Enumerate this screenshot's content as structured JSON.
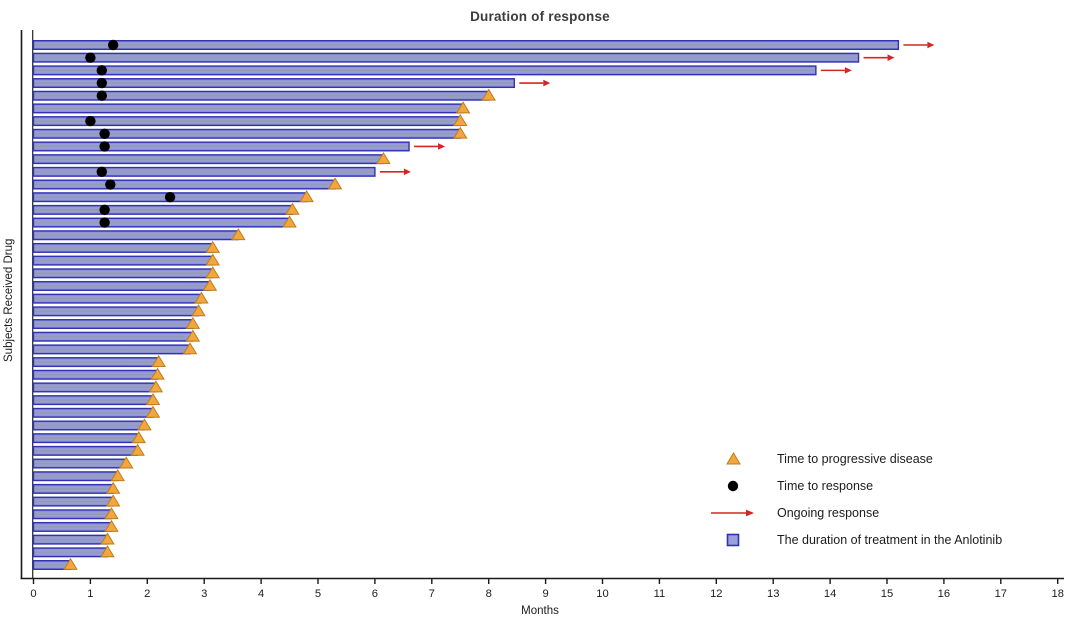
{
  "title": "Duration of response",
  "y_axis_label": "Subjects Received Drug",
  "x_axis_label": "Months",
  "legend": {
    "items": [
      {
        "label": "Time to progressive disease",
        "marker": "triangle"
      },
      {
        "label": "Time to response",
        "marker": "circle"
      },
      {
        "label": "Ongoing response",
        "marker": "arrow"
      },
      {
        "label": "The duration of treatment in the Anlotinib",
        "marker": "square"
      }
    ]
  },
  "colors": {
    "bar_fill_light": "#9aa0d8",
    "bar_fill_core": "#939aae",
    "bar_edge": "#7d84cf",
    "bar_border": "#3232b2",
    "triangle": "#f2a73b",
    "triangle_border": "#bf7d1c",
    "dot": "#000000",
    "arrow": "#d42724",
    "axis": "#1a1a1a",
    "text": "#1c1c1c"
  },
  "chart_data": {
    "type": "bar",
    "orientation": "horizontal",
    "title": "Duration of response",
    "xlabel": "Months",
    "ylabel": "Subjects Received Drug",
    "xlim": [
      0,
      18
    ],
    "x_ticks": [
      0,
      1,
      2,
      3,
      4,
      5,
      6,
      7,
      8,
      9,
      10,
      11,
      12,
      13,
      14,
      15,
      16,
      17,
      18
    ],
    "grid": false,
    "legend_position": "lower right",
    "series_units": "months",
    "subjects": [
      {
        "treatment": 15.2,
        "time_to_response": 1.4,
        "time_to_progression": null,
        "ongoing": true
      },
      {
        "treatment": 14.5,
        "time_to_response": 1.0,
        "time_to_progression": null,
        "ongoing": true
      },
      {
        "treatment": 13.75,
        "time_to_response": 1.2,
        "time_to_progression": null,
        "ongoing": true
      },
      {
        "treatment": 8.45,
        "time_to_response": 1.2,
        "time_to_progression": null,
        "ongoing": true
      },
      {
        "treatment": 8.0,
        "time_to_response": 1.2,
        "time_to_progression": 8.0,
        "ongoing": false
      },
      {
        "treatment": 7.55,
        "time_to_response": null,
        "time_to_progression": 7.55,
        "ongoing": false
      },
      {
        "treatment": 7.5,
        "time_to_response": 1.0,
        "time_to_progression": 7.5,
        "ongoing": false
      },
      {
        "treatment": 7.5,
        "time_to_response": 1.25,
        "time_to_progression": 7.5,
        "ongoing": false
      },
      {
        "treatment": 6.6,
        "time_to_response": 1.25,
        "time_to_progression": null,
        "ongoing": true
      },
      {
        "treatment": 6.15,
        "time_to_response": null,
        "time_to_progression": 6.15,
        "ongoing": false
      },
      {
        "treatment": 6.0,
        "time_to_response": 1.2,
        "time_to_progression": null,
        "ongoing": true
      },
      {
        "treatment": 5.3,
        "time_to_response": 1.35,
        "time_to_progression": 5.3,
        "ongoing": false
      },
      {
        "treatment": 4.8,
        "time_to_response": 2.4,
        "time_to_progression": 4.8,
        "ongoing": false
      },
      {
        "treatment": 4.55,
        "time_to_response": 1.25,
        "time_to_progression": 4.55,
        "ongoing": false
      },
      {
        "treatment": 4.5,
        "time_to_response": 1.25,
        "time_to_progression": 4.5,
        "ongoing": false
      },
      {
        "treatment": 3.6,
        "time_to_response": null,
        "time_to_progression": 3.6,
        "ongoing": false
      },
      {
        "treatment": 3.15,
        "time_to_response": null,
        "time_to_progression": 3.15,
        "ongoing": false
      },
      {
        "treatment": 3.15,
        "time_to_response": null,
        "time_to_progression": 3.15,
        "ongoing": false
      },
      {
        "treatment": 3.15,
        "time_to_response": null,
        "time_to_progression": 3.15,
        "ongoing": false
      },
      {
        "treatment": 3.1,
        "time_to_response": null,
        "time_to_progression": 3.1,
        "ongoing": false
      },
      {
        "treatment": 2.95,
        "time_to_response": null,
        "time_to_progression": 2.95,
        "ongoing": false
      },
      {
        "treatment": 2.9,
        "time_to_response": null,
        "time_to_progression": 2.9,
        "ongoing": false
      },
      {
        "treatment": 2.8,
        "time_to_response": null,
        "time_to_progression": 2.8,
        "ongoing": false
      },
      {
        "treatment": 2.8,
        "time_to_response": null,
        "time_to_progression": 2.8,
        "ongoing": false
      },
      {
        "treatment": 2.75,
        "time_to_response": null,
        "time_to_progression": 2.75,
        "ongoing": false
      },
      {
        "treatment": 2.2,
        "time_to_response": null,
        "time_to_progression": 2.2,
        "ongoing": false
      },
      {
        "treatment": 2.18,
        "time_to_response": null,
        "time_to_progression": 2.18,
        "ongoing": false
      },
      {
        "treatment": 2.15,
        "time_to_response": null,
        "time_to_progression": 2.15,
        "ongoing": false
      },
      {
        "treatment": 2.1,
        "time_to_response": null,
        "time_to_progression": 2.1,
        "ongoing": false
      },
      {
        "treatment": 2.1,
        "time_to_response": null,
        "time_to_progression": 2.1,
        "ongoing": false
      },
      {
        "treatment": 1.95,
        "time_to_response": null,
        "time_to_progression": 1.95,
        "ongoing": false
      },
      {
        "treatment": 1.85,
        "time_to_response": null,
        "time_to_progression": 1.85,
        "ongoing": false
      },
      {
        "treatment": 1.83,
        "time_to_response": null,
        "time_to_progression": 1.83,
        "ongoing": false
      },
      {
        "treatment": 1.63,
        "time_to_response": null,
        "time_to_progression": 1.63,
        "ongoing": false
      },
      {
        "treatment": 1.48,
        "time_to_response": null,
        "time_to_progression": 1.48,
        "ongoing": false
      },
      {
        "treatment": 1.4,
        "time_to_response": null,
        "time_to_progression": 1.4,
        "ongoing": false
      },
      {
        "treatment": 1.4,
        "time_to_response": null,
        "time_to_progression": 1.4,
        "ongoing": false
      },
      {
        "treatment": 1.37,
        "time_to_response": null,
        "time_to_progression": 1.37,
        "ongoing": false
      },
      {
        "treatment": 1.37,
        "time_to_response": null,
        "time_to_progression": 1.37,
        "ongoing": false
      },
      {
        "treatment": 1.3,
        "time_to_response": null,
        "time_to_progression": 1.3,
        "ongoing": false
      },
      {
        "treatment": 1.3,
        "time_to_response": null,
        "time_to_progression": 1.3,
        "ongoing": false
      },
      {
        "treatment": 0.65,
        "time_to_response": null,
        "time_to_progression": 0.65,
        "ongoing": false
      }
    ]
  }
}
